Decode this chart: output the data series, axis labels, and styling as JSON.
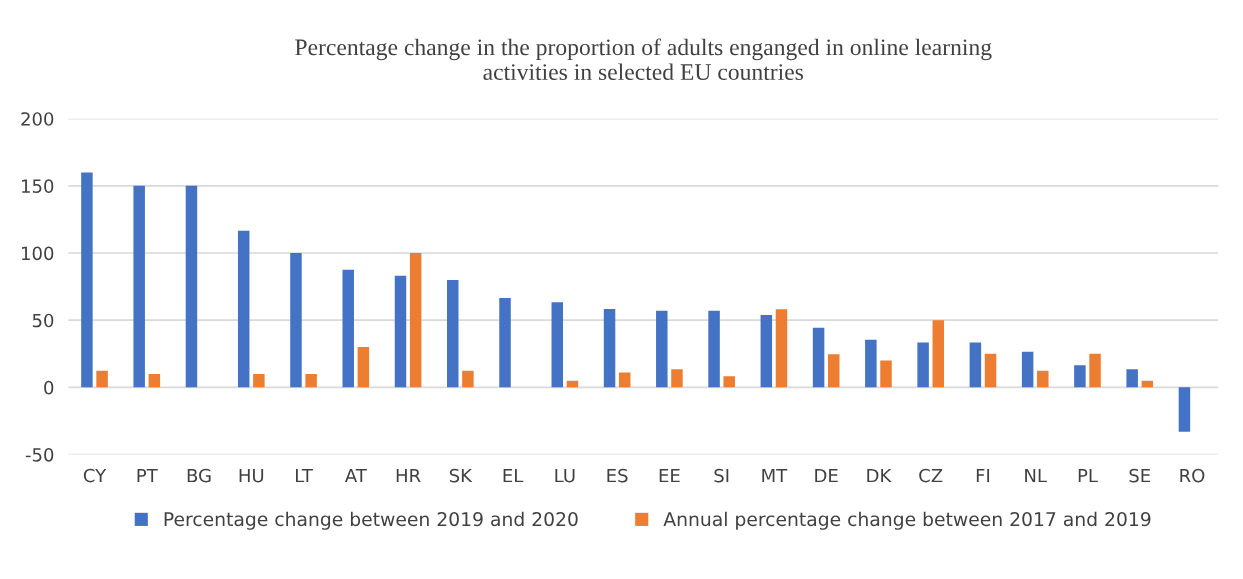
{
  "chart_data": {
    "type": "bar",
    "title": "Percentage change in the proportion of adults enganged in online learning\nactivities in selected EU countries",
    "categories": [
      "CY",
      "PT",
      "BG",
      "HU",
      "LT",
      "AT",
      "HR",
      "SK",
      "EL",
      "LU",
      "ES",
      "EE",
      "SI",
      "MT",
      "DE",
      "DK",
      "CZ",
      "FI",
      "NL",
      "PL",
      "SE",
      "RO"
    ],
    "series": [
      {
        "name": "Percentage change between 2019 and 2020",
        "color": "#4472c4",
        "values": [
          160,
          150,
          150,
          116.5,
          100,
          87.5,
          83,
          80,
          66.5,
          63.3,
          58.4,
          57,
          57,
          53.8,
          44.3,
          35.4,
          33.4,
          33.4,
          26.5,
          16.4,
          13.5,
          -33
        ]
      },
      {
        "name": "Annual percentage change between 2017 and 2019",
        "color": "#ed7d31",
        "values": [
          12.4,
          10,
          null,
          10,
          10,
          30,
          100,
          12.4,
          null,
          4.9,
          11,
          13.5,
          8.3,
          58.1,
          24.7,
          19.9,
          50,
          25,
          12.4,
          25,
          4.9,
          null
        ]
      }
    ],
    "ylim": [
      -50,
      200
    ],
    "yticks": [
      -50,
      0,
      50,
      100,
      150,
      200
    ],
    "grid": "y",
    "legend": "bottom"
  }
}
